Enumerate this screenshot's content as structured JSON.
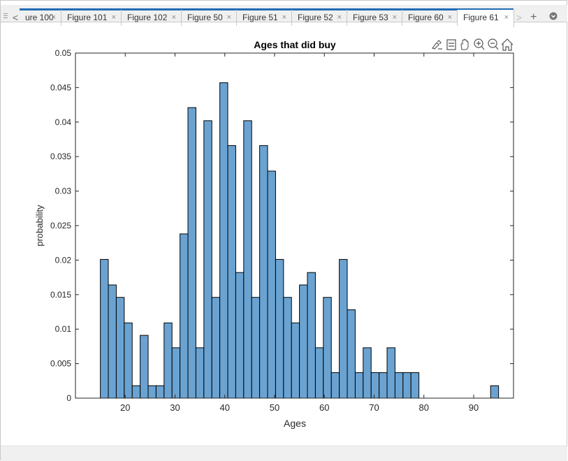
{
  "tabs": [
    {
      "label": "ure 100",
      "active": false
    },
    {
      "label": "Figure 101",
      "active": false
    },
    {
      "label": "Figure 102",
      "active": false
    },
    {
      "label": "Figure 50",
      "active": false
    },
    {
      "label": "Figure 51",
      "active": false
    },
    {
      "label": "Figure 52",
      "active": false
    },
    {
      "label": "Figure 53",
      "active": false
    },
    {
      "label": "Figure 60",
      "active": false
    },
    {
      "label": "Figure 61",
      "active": true
    }
  ],
  "tab_close_glyph": "×",
  "nav": {
    "prev_glyph": "<",
    "next_glyph": ">",
    "add_glyph": "+"
  },
  "toolbar_icons": [
    "brush-icon",
    "data-tips-icon",
    "pan-icon",
    "zoom-in-icon",
    "zoom-out-icon",
    "home-icon"
  ],
  "colors": {
    "bar_fill": "#6aa3d2",
    "bar_edge": "#000000",
    "active_tab_bar": "#1f6bb5"
  },
  "chart_data": {
    "type": "bar",
    "title": "Ages that did buy",
    "xlabel": "Ages",
    "ylabel": "probability",
    "xlim": [
      10,
      98
    ],
    "ylim": [
      0,
      0.05
    ],
    "xticks": [
      "20",
      "30",
      "40",
      "50",
      "60",
      "70",
      "80",
      "90"
    ],
    "yticks": [
      "0",
      "0.005",
      "0.01",
      "0.015",
      "0.02",
      "0.025",
      "0.03",
      "0.035",
      "0.04",
      "0.045",
      "0.05"
    ],
    "bin_width": 1.6,
    "bin_edges_start": 15,
    "values": [
      0.0201,
      0.0164,
      0.0146,
      0.0109,
      0.0018,
      0.0091,
      0.0018,
      0.0018,
      0.0109,
      0.0073,
      0.0238,
      0.0421,
      0.0073,
      0.0402,
      0.0146,
      0.0457,
      0.0366,
      0.0182,
      0.0402,
      0.0146,
      0.0366,
      0.0329,
      0.0201,
      0.0146,
      0.0109,
      0.0164,
      0.0182,
      0.0073,
      0.0146,
      0.0037,
      0.0201,
      0.0128,
      0.0037,
      0.0073,
      0.0037,
      0.0037,
      0.0073,
      0.0037,
      0.0037,
      0.0037,
      0,
      0,
      0,
      0,
      0,
      0,
      0,
      0,
      0,
      0.0018
    ],
    "grid": false,
    "legend": "none"
  }
}
